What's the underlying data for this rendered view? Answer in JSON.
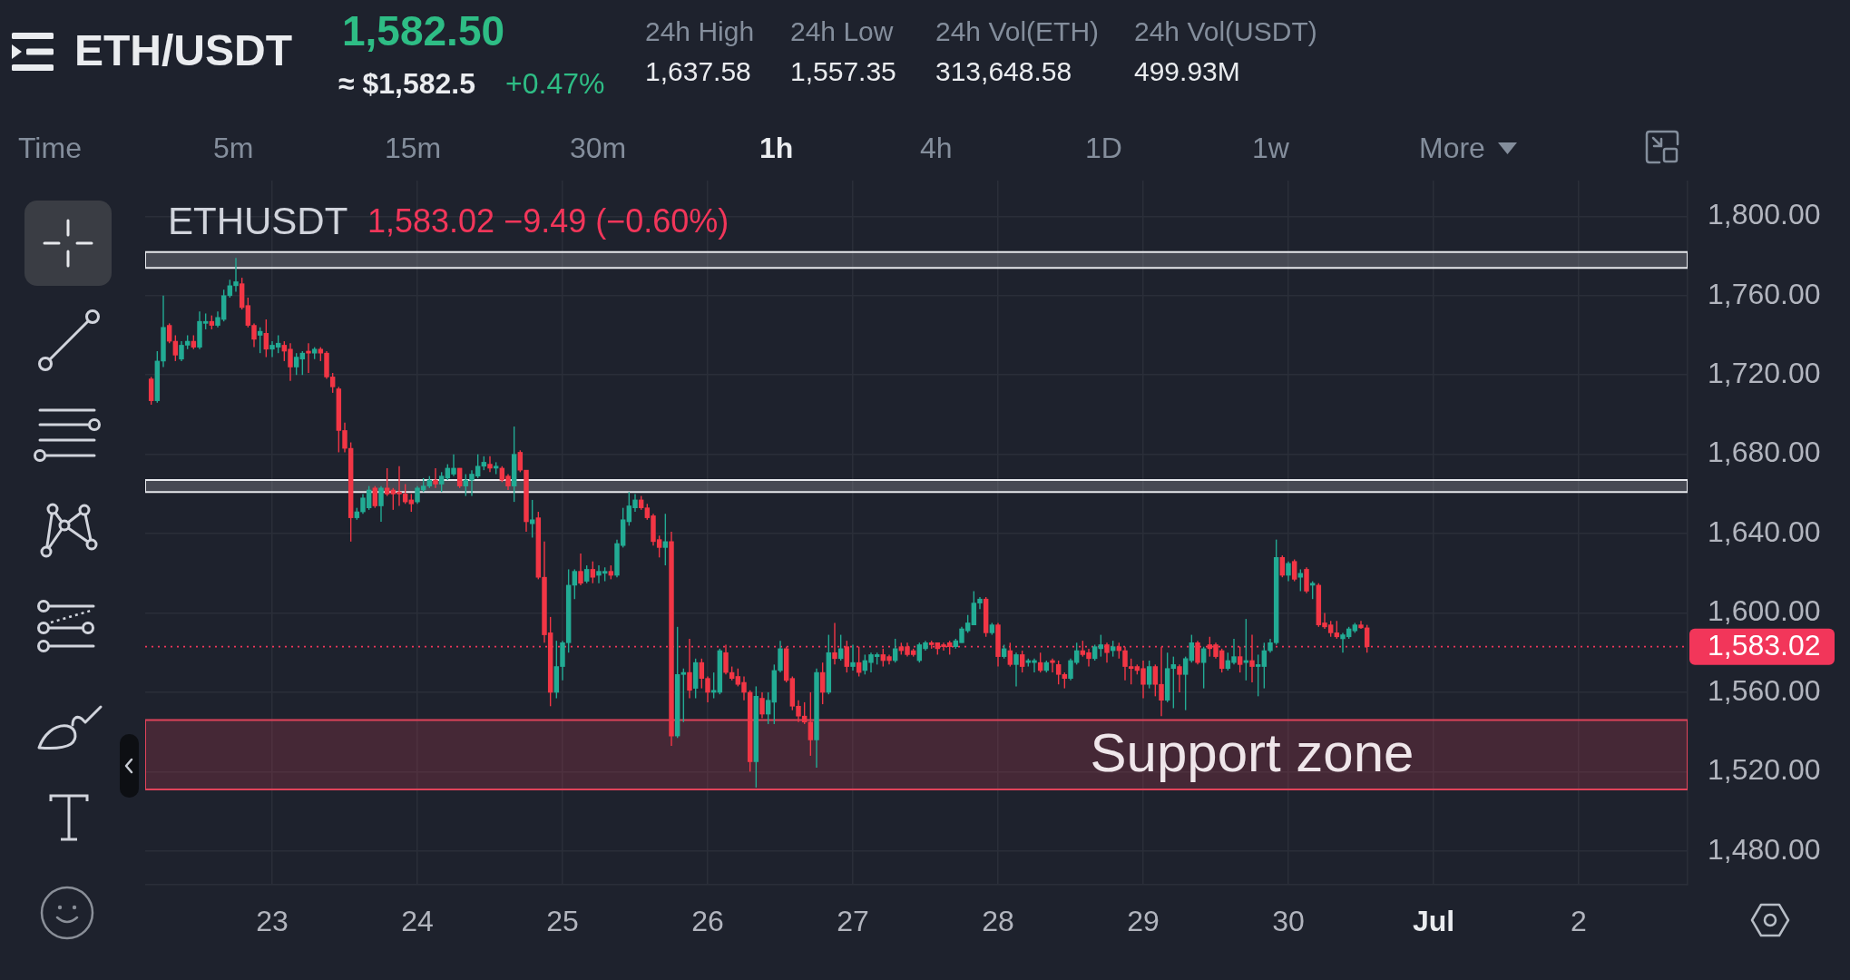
{
  "chart_data": {
    "type": "candlestick",
    "title": "ETH/USDT",
    "subtitle": "ETHUSDT",
    "annotations": [
      "1,582.50",
      "≈ $1,582.5",
      "+0.47%",
      "24h High",
      "1,637.58",
      "24h Low",
      "1,557.35",
      "24h Vol(ETH)",
      "313,648.58",
      "24h Vol(USDT)",
      "499.93M",
      "Time",
      "5m",
      "15m",
      "30m",
      "1h",
      "4h",
      "1D",
      "1w",
      "More",
      "1,583.02 −9.49 (−0.60%)"
    ],
    "x": [
      "--06-22T04:00",
      "--06-22T05:00",
      "--06-22T06:00",
      "--06-22T07:00",
      "--06-22T08:00",
      "--06-22T09:00",
      "--06-22T10:00",
      "--06-22T11:00",
      "--06-22T12:00",
      "--06-22T13:00",
      "--06-22T14:00",
      "--06-22T15:00",
      "--06-22T16:00",
      "--06-22T17:00",
      "--06-22T18:00",
      "--06-22T19:00",
      "--06-22T20:00",
      "--06-22T21:00",
      "--06-22T22:00",
      "--06-22T23:00",
      "--06-23T00:00",
      "--06-23T01:00",
      "--06-23T02:00",
      "--06-23T03:00",
      "--06-23T04:00",
      "--06-23T05:00",
      "--06-23T06:00",
      "--06-23T07:00",
      "--06-23T08:00",
      "--06-23T09:00",
      "--06-23T10:00",
      "--06-23T11:00",
      "--06-23T12:00",
      "--06-23T13:00",
      "--06-23T14:00",
      "--06-23T15:00",
      "--06-23T16:00",
      "--06-23T17:00",
      "--06-23T18:00",
      "--06-23T19:00",
      "--06-23T20:00",
      "--06-23T21:00",
      "--06-23T22:00",
      "--06-23T23:00",
      "--06-24T00:00",
      "--06-24T01:00",
      "--06-24T02:00",
      "--06-24T03:00",
      "--06-24T04:00",
      "--06-24T05:00",
      "--06-24T06:00",
      "--06-24T07:00",
      "--06-24T08:00",
      "--06-24T09:00",
      "--06-24T10:00",
      "--06-24T11:00",
      "--06-24T12:00",
      "--06-24T13:00",
      "--06-24T14:00",
      "--06-24T15:00",
      "--06-24T16:00",
      "--06-24T17:00",
      "--06-24T18:00",
      "--06-24T19:00",
      "--06-24T20:00",
      "--06-24T21:00",
      "--06-24T22:00",
      "--06-24T23:00",
      "--06-25T00:00",
      "--06-25T01:00",
      "--06-25T02:00",
      "--06-25T03:00",
      "--06-25T04:00",
      "--06-25T05:00",
      "--06-25T06:00",
      "--06-25T07:00",
      "--06-25T08:00",
      "--06-25T09:00",
      "--06-25T10:00",
      "--06-25T11:00",
      "--06-25T12:00",
      "--06-25T13:00",
      "--06-25T14:00",
      "--06-25T15:00",
      "--06-25T16:00",
      "--06-25T17:00",
      "--06-25T18:00",
      "--06-25T19:00",
      "--06-25T20:00",
      "--06-25T21:00",
      "--06-25T22:00",
      "--06-25T23:00",
      "--06-26T00:00",
      "--06-26T01:00",
      "--06-26T02:00",
      "--06-26T03:00",
      "--06-26T04:00",
      "--06-26T05:00",
      "--06-26T06:00",
      "--06-26T07:00",
      "--06-26T08:00",
      "--06-26T09:00",
      "--06-26T10:00",
      "--06-26T11:00",
      "--06-26T12:00",
      "--06-26T13:00",
      "--06-26T14:00",
      "--06-26T15:00",
      "--06-26T16:00",
      "--06-26T17:00",
      "--06-26T18:00",
      "--06-26T19:00",
      "--06-26T20:00",
      "--06-26T21:00",
      "--06-26T22:00",
      "--06-26T23:00",
      "--06-27T00:00",
      "--06-27T01:00",
      "--06-27T02:00",
      "--06-27T03:00",
      "--06-27T04:00",
      "--06-27T05:00",
      "--06-27T06:00",
      "--06-27T07:00",
      "--06-27T08:00",
      "--06-27T09:00",
      "--06-27T10:00",
      "--06-27T11:00",
      "--06-27T12:00",
      "--06-27T13:00",
      "--06-27T14:00",
      "--06-27T15:00",
      "--06-27T16:00",
      "--06-27T17:00",
      "--06-27T18:00",
      "--06-27T19:00",
      "--06-27T20:00",
      "--06-27T21:00",
      "--06-27T22:00",
      "--06-27T23:00",
      "--06-28T00:00",
      "--06-28T01:00",
      "--06-28T02:00",
      "--06-28T03:00",
      "--06-28T04:00",
      "--06-28T05:00",
      "--06-28T06:00",
      "--06-28T07:00",
      "--06-28T08:00",
      "--06-28T09:00",
      "--06-28T10:00",
      "--06-28T11:00",
      "--06-28T12:00",
      "--06-28T13:00",
      "--06-28T14:00",
      "--06-28T15:00",
      "--06-28T16:00",
      "--06-28T17:00",
      "--06-28T18:00",
      "--06-28T19:00",
      "--06-28T20:00",
      "--06-28T21:00",
      "--06-28T22:00",
      "--06-28T23:00",
      "--06-29T00:00",
      "--06-29T01:00",
      "--06-29T02:00",
      "--06-29T03:00",
      "--06-29T04:00",
      "--06-29T05:00",
      "--06-29T06:00",
      "--06-29T07:00",
      "--06-29T08:00",
      "--06-29T09:00",
      "--06-29T10:00",
      "--06-29T11:00",
      "--06-29T12:00",
      "--06-29T13:00",
      "--06-29T14:00",
      "--06-29T15:00",
      "--06-29T16:00",
      "--06-29T17:00",
      "--06-29T18:00",
      "--06-29T19:00",
      "--06-29T20:00",
      "--06-29T21:00",
      "--06-29T22:00",
      "--06-29T23:00",
      "--06-30T00:00",
      "--06-30T01:00",
      "--06-30T02:00",
      "--06-30T03:00",
      "--06-30T04:00",
      "--06-30T05:00",
      "--06-30T06:00",
      "--06-30T07:00",
      "--06-30T08:00",
      "--06-30T09:00",
      "--06-30T10:00",
      "--06-30T11:00",
      "--06-30T12:00",
      "--06-30T13:00"
    ],
    "ohlc": [
      [
        1718,
        1719,
        1705,
        1707
      ],
      [
        1707,
        1732,
        1706,
        1727
      ],
      [
        1727,
        1760,
        1724,
        1744
      ],
      [
        1745,
        1746,
        1736,
        1737
      ],
      [
        1737,
        1740,
        1727,
        1730
      ],
      [
        1728,
        1737,
        1727,
        1735
      ],
      [
        1735,
        1740,
        1733,
        1737
      ],
      [
        1737,
        1740,
        1733,
        1734
      ],
      [
        1734,
        1752,
        1733,
        1747
      ],
      [
        1746,
        1751,
        1743,
        1747
      ],
      [
        1747,
        1750,
        1743,
        1745
      ],
      [
        1745,
        1752,
        1744,
        1749
      ],
      [
        1748,
        1763,
        1747,
        1760
      ],
      [
        1760,
        1768,
        1759,
        1765
      ],
      [
        1765,
        1779,
        1762,
        1767
      ],
      [
        1766,
        1769,
        1753,
        1754
      ],
      [
        1755,
        1759,
        1744,
        1745
      ],
      [
        1745,
        1746,
        1734,
        1738
      ],
      [
        1740,
        1744,
        1731,
        1742
      ],
      [
        1741,
        1748,
        1729,
        1733
      ],
      [
        1733,
        1737,
        1729,
        1735
      ],
      [
        1734,
        1740,
        1731,
        1736
      ],
      [
        1735,
        1737,
        1727,
        1732
      ],
      [
        1733,
        1736,
        1717,
        1724
      ],
      [
        1724,
        1731,
        1720,
        1729
      ],
      [
        1728,
        1732,
        1720,
        1731
      ],
      [
        1732,
        1736,
        1721,
        1731
      ],
      [
        1731,
        1734,
        1728,
        1733
      ],
      [
        1733,
        1734,
        1727,
        1731
      ],
      [
        1731,
        1732,
        1718,
        1719
      ],
      [
        1719,
        1721,
        1711,
        1714
      ],
      [
        1713,
        1714,
        1681,
        1692
      ],
      [
        1692,
        1696,
        1681,
        1683
      ],
      [
        1683,
        1686,
        1636,
        1648
      ],
      [
        1648,
        1653,
        1647,
        1651
      ],
      [
        1651,
        1660,
        1650,
        1658
      ],
      [
        1653,
        1664,
        1652,
        1662
      ],
      [
        1663,
        1664,
        1653,
        1654
      ],
      [
        1654,
        1664,
        1646,
        1663
      ],
      [
        1663,
        1673,
        1659,
        1660
      ],
      [
        1662,
        1663,
        1652,
        1660
      ],
      [
        1661,
        1674,
        1654,
        1660
      ],
      [
        1660,
        1665,
        1655,
        1656
      ],
      [
        1657,
        1660,
        1651,
        1655
      ],
      [
        1656,
        1664,
        1655,
        1663
      ],
      [
        1662,
        1668,
        1661,
        1664
      ],
      [
        1664,
        1669,
        1663,
        1667
      ],
      [
        1667,
        1673,
        1663,
        1665
      ],
      [
        1665,
        1671,
        1661,
        1669
      ],
      [
        1668,
        1675,
        1667,
        1673
      ],
      [
        1670,
        1680,
        1669,
        1673
      ],
      [
        1673,
        1673,
        1663,
        1664
      ],
      [
        1664,
        1670,
        1659,
        1667
      ],
      [
        1667,
        1672,
        1659,
        1670
      ],
      [
        1669,
        1680,
        1668,
        1674
      ],
      [
        1674,
        1679,
        1672,
        1676
      ],
      [
        1675,
        1679,
        1671,
        1673
      ],
      [
        1673,
        1676,
        1670,
        1674
      ],
      [
        1673,
        1674,
        1666,
        1667
      ],
      [
        1669,
        1670,
        1662,
        1664
      ],
      [
        1664,
        1694,
        1656,
        1680
      ],
      [
        1681,
        1682,
        1671,
        1672
      ],
      [
        1672,
        1672,
        1641,
        1646
      ],
      [
        1645,
        1657,
        1638,
        1647
      ],
      [
        1648,
        1651,
        1617,
        1618
      ],
      [
        1618,
        1636,
        1585,
        1589
      ],
      [
        1590,
        1598,
        1553,
        1560
      ],
      [
        1560,
        1586,
        1557,
        1573
      ],
      [
        1573,
        1586,
        1566,
        1585
      ],
      [
        1585,
        1622,
        1580,
        1614
      ],
      [
        1614,
        1622,
        1607,
        1621
      ],
      [
        1621,
        1630,
        1614,
        1615
      ],
      [
        1616,
        1624,
        1615,
        1622
      ],
      [
        1622,
        1626,
        1615,
        1618
      ],
      [
        1619,
        1624,
        1615,
        1621
      ],
      [
        1620,
        1623,
        1616,
        1621
      ],
      [
        1621,
        1624,
        1617,
        1619
      ],
      [
        1619,
        1637,
        1618,
        1635
      ],
      [
        1634,
        1653,
        1633,
        1647
      ],
      [
        1646,
        1661,
        1644,
        1654
      ],
      [
        1653,
        1660,
        1651,
        1657
      ],
      [
        1657,
        1659,
        1652,
        1653
      ],
      [
        1653,
        1655,
        1647,
        1648
      ],
      [
        1649,
        1650,
        1634,
        1636
      ],
      [
        1637,
        1639,
        1628,
        1633
      ],
      [
        1633,
        1650,
        1624,
        1636
      ],
      [
        1636,
        1641,
        1533,
        1538
      ],
      [
        1538,
        1593,
        1537,
        1569
      ],
      [
        1569,
        1572,
        1545,
        1570
      ],
      [
        1570,
        1587,
        1557,
        1561
      ],
      [
        1562,
        1577,
        1557,
        1575
      ],
      [
        1575,
        1577,
        1562,
        1567
      ],
      [
        1567,
        1568,
        1555,
        1560
      ],
      [
        1560,
        1570,
        1557,
        1561
      ],
      [
        1560,
        1582,
        1559,
        1581
      ],
      [
        1580,
        1584,
        1569,
        1570
      ],
      [
        1570,
        1573,
        1566,
        1567
      ],
      [
        1568,
        1572,
        1563,
        1564
      ],
      [
        1565,
        1568,
        1556,
        1560
      ],
      [
        1560,
        1561,
        1520,
        1525
      ],
      [
        1525,
        1563,
        1512,
        1558
      ],
      [
        1557,
        1560,
        1547,
        1549
      ],
      [
        1549,
        1560,
        1544,
        1556
      ],
      [
        1555,
        1574,
        1544,
        1571
      ],
      [
        1571,
        1586,
        1570,
        1582
      ],
      [
        1582,
        1583,
        1565,
        1566
      ],
      [
        1567,
        1568,
        1551,
        1553
      ],
      [
        1553,
        1556,
        1545,
        1548
      ],
      [
        1548,
        1555,
        1544,
        1545
      ],
      [
        1545,
        1560,
        1528,
        1536
      ],
      [
        1536,
        1572,
        1522,
        1570
      ],
      [
        1570,
        1575,
        1554,
        1560
      ],
      [
        1560,
        1589,
        1559,
        1580
      ],
      [
        1580,
        1595,
        1574,
        1577
      ],
      [
        1577,
        1589,
        1576,
        1582
      ],
      [
        1583,
        1586,
        1570,
        1573
      ],
      [
        1573,
        1584,
        1571,
        1575
      ],
      [
        1575,
        1583,
        1568,
        1570
      ],
      [
        1571,
        1579,
        1569,
        1576
      ],
      [
        1575,
        1580,
        1570,
        1579
      ],
      [
        1578,
        1580,
        1574,
        1579
      ],
      [
        1579,
        1582,
        1573,
        1576
      ],
      [
        1578,
        1579,
        1574,
        1576
      ],
      [
        1576,
        1587,
        1575,
        1582
      ],
      [
        1583,
        1585,
        1579,
        1581
      ],
      [
        1583,
        1585,
        1578,
        1579
      ],
      [
        1581,
        1582,
        1578,
        1579
      ],
      [
        1576,
        1585,
        1575,
        1584
      ],
      [
        1582,
        1586,
        1581,
        1585
      ],
      [
        1585,
        1586,
        1582,
        1584
      ],
      [
        1585,
        1585,
        1579,
        1582
      ],
      [
        1584,
        1585,
        1581,
        1583
      ],
      [
        1585,
        1586,
        1579,
        1583
      ],
      [
        1583,
        1587,
        1582,
        1586
      ],
      [
        1585,
        1593,
        1585,
        1592
      ],
      [
        1591,
        1599,
        1590,
        1595
      ],
      [
        1594,
        1611,
        1594,
        1605
      ],
      [
        1605,
        1608,
        1602,
        1607
      ],
      [
        1607,
        1608,
        1588,
        1590
      ],
      [
        1590,
        1595,
        1589,
        1594
      ],
      [
        1594,
        1595,
        1573,
        1578
      ],
      [
        1578,
        1584,
        1577,
        1582
      ],
      [
        1581,
        1585,
        1573,
        1574
      ],
      [
        1574,
        1580,
        1563,
        1579
      ],
      [
        1579,
        1581,
        1570,
        1573
      ],
      [
        1575,
        1577,
        1573,
        1576
      ],
      [
        1575,
        1577,
        1570,
        1576
      ],
      [
        1575,
        1580,
        1570,
        1571
      ],
      [
        1571,
        1576,
        1570,
        1575
      ],
      [
        1576,
        1577,
        1570,
        1575
      ],
      [
        1574,
        1576,
        1564,
        1569
      ],
      [
        1569,
        1570,
        1562,
        1567
      ],
      [
        1567,
        1577,
        1566,
        1576
      ],
      [
        1575,
        1585,
        1574,
        1581
      ],
      [
        1581,
        1586,
        1578,
        1579
      ],
      [
        1580,
        1582,
        1573,
        1577
      ],
      [
        1577,
        1584,
        1576,
        1583
      ],
      [
        1582,
        1589,
        1578,
        1584
      ],
      [
        1584,
        1585,
        1575,
        1580
      ],
      [
        1581,
        1586,
        1578,
        1583
      ],
      [
        1583,
        1585,
        1577,
        1581
      ],
      [
        1581,
        1583,
        1566,
        1573
      ],
      [
        1573,
        1577,
        1564,
        1572
      ],
      [
        1573,
        1574,
        1569,
        1571
      ],
      [
        1572,
        1576,
        1557,
        1564
      ],
      [
        1564,
        1576,
        1562,
        1573
      ],
      [
        1573,
        1574,
        1558,
        1564
      ],
      [
        1564,
        1583,
        1548,
        1556
      ],
      [
        1556,
        1580,
        1555,
        1572
      ],
      [
        1572,
        1578,
        1552,
        1574
      ],
      [
        1573,
        1574,
        1560,
        1569
      ],
      [
        1569,
        1578,
        1551,
        1577
      ],
      [
        1576,
        1589,
        1575,
        1585
      ],
      [
        1585,
        1586,
        1574,
        1575
      ],
      [
        1575,
        1583,
        1562,
        1582
      ],
      [
        1584,
        1588,
        1578,
        1582
      ],
      [
        1584,
        1585,
        1577,
        1578
      ],
      [
        1581,
        1582,
        1570,
        1572
      ],
      [
        1572,
        1580,
        1571,
        1576
      ],
      [
        1575,
        1587,
        1574,
        1578
      ],
      [
        1578,
        1583,
        1570,
        1574
      ],
      [
        1575,
        1597,
        1566,
        1576
      ],
      [
        1576,
        1589,
        1565,
        1573
      ],
      [
        1573,
        1579,
        1558,
        1574
      ],
      [
        1573,
        1585,
        1562,
        1581
      ],
      [
        1581,
        1587,
        1580,
        1585
      ],
      [
        1585,
        1637,
        1584,
        1628
      ],
      [
        1628,
        1629,
        1618,
        1619
      ],
      [
        1619,
        1626,
        1616,
        1625
      ],
      [
        1626,
        1627,
        1616,
        1617
      ],
      [
        1618,
        1622,
        1611,
        1620
      ],
      [
        1622,
        1623,
        1610,
        1611
      ],
      [
        1614,
        1616,
        1607,
        1615
      ],
      [
        1614,
        1615,
        1593,
        1594
      ],
      [
        1595,
        1600,
        1592,
        1593
      ],
      [
        1594,
        1596,
        1588,
        1590
      ],
      [
        1590,
        1596,
        1587,
        1588
      ],
      [
        1587,
        1590,
        1580,
        1589
      ],
      [
        1588,
        1593,
        1587,
        1592
      ],
      [
        1591,
        1595,
        1590,
        1594
      ],
      [
        1594,
        1596,
        1592,
        1592.51
      ],
      [
        1592.51,
        1594,
        1580,
        1583.02
      ]
    ],
    "colors": [
      "#f23645",
      "#22ab94",
      "#22ab94",
      "#f23645",
      "#f23645",
      "#22ab94",
      "#22ab94",
      "#f23645",
      "#22ab94",
      "#22ab94",
      "#f23645",
      "#22ab94",
      "#22ab94",
      "#22ab94",
      "#22ab94",
      "#f23645",
      "#f23645",
      "#f23645",
      "#22ab94",
      "#f23645",
      "#22ab94",
      "#22ab94",
      "#f23645",
      "#f23645",
      "#22ab94",
      "#22ab94",
      "#f23645",
      "#22ab94",
      "#f23645",
      "#f23645",
      "#f23645",
      "#f23645",
      "#f23645",
      "#f23645",
      "#22ab94",
      "#22ab94",
      "#22ab94",
      "#f23645",
      "#22ab94",
      "#f23645",
      "#f23645",
      "#f23645",
      "#f23645",
      "#f23645",
      "#22ab94",
      "#22ab94",
      "#22ab94",
      "#f23645",
      "#22ab94",
      "#22ab94",
      "#22ab94",
      "#f23645",
      "#22ab94",
      "#22ab94",
      "#22ab94",
      "#22ab94",
      "#f23645",
      "#22ab94",
      "#f23645",
      "#f23645",
      "#22ab94",
      "#f23645",
      "#f23645",
      "#22ab94",
      "#f23645",
      "#f23645",
      "#f23645",
      "#22ab94",
      "#22ab94",
      "#22ab94",
      "#22ab94",
      "#f23645",
      "#22ab94",
      "#f23645",
      "#22ab94",
      "#22ab94",
      "#f23645",
      "#22ab94",
      "#22ab94",
      "#22ab94",
      "#22ab94",
      "#f23645",
      "#f23645",
      "#f23645",
      "#f23645",
      "#22ab94",
      "#f23645",
      "#22ab94",
      "#22ab94",
      "#f23645",
      "#22ab94",
      "#f23645",
      "#f23645",
      "#22ab94",
      "#22ab94",
      "#f23645",
      "#f23645",
      "#f23645",
      "#f23645",
      "#f23645",
      "#22ab94",
      "#f23645",
      "#22ab94",
      "#22ab94",
      "#22ab94",
      "#f23645",
      "#f23645",
      "#f23645",
      "#f23645",
      "#f23645",
      "#22ab94",
      "#f23645",
      "#22ab94",
      "#f23645",
      "#22ab94",
      "#f23645",
      "#22ab94",
      "#f23645",
      "#22ab94",
      "#22ab94",
      "#22ab94",
      "#f23645",
      "#f23645",
      "#22ab94",
      "#f23645",
      "#f23645",
      "#f23645",
      "#22ab94",
      "#22ab94",
      "#f23645",
      "#f23645",
      "#f23645",
      "#f23645",
      "#22ab94",
      "#22ab94",
      "#22ab94",
      "#22ab94",
      "#22ab94",
      "#f23645",
      "#22ab94",
      "#f23645",
      "#22ab94",
      "#f23645",
      "#22ab94",
      "#f23645",
      "#22ab94",
      "#22ab94",
      "#f23645",
      "#22ab94",
      "#f23645",
      "#f23645",
      "#f23645",
      "#22ab94",
      "#22ab94",
      "#f23645",
      "#f23645",
      "#22ab94",
      "#22ab94",
      "#f23645",
      "#22ab94",
      "#f23645",
      "#f23645",
      "#f23645",
      "#f23645",
      "#f23645",
      "#22ab94",
      "#f23645",
      "#f23645",
      "#22ab94",
      "#22ab94",
      "#f23645",
      "#22ab94",
      "#22ab94",
      "#f23645",
      "#22ab94",
      "#f23645",
      "#f23645",
      "#f23645",
      "#22ab94",
      "#22ab94",
      "#f23645",
      "#22ab94",
      "#f23645",
      "#22ab94",
      "#22ab94",
      "#22ab94",
      "#22ab94",
      "#f23645",
      "#22ab94",
      "#f23645",
      "#22ab94",
      "#f23645",
      "#22ab94",
      "#f23645",
      "#f23645",
      "#f23645",
      "#f23645",
      "#22ab94",
      "#22ab94",
      "#22ab94",
      "#f23645",
      "#f23645"
    ],
    "xlim": [
      "--06-22T03:00",
      "--07-02T18:00"
    ],
    "xticks": [
      {
        "value": "--06-23",
        "label": "23"
      },
      {
        "value": "--06-24",
        "label": "24"
      },
      {
        "value": "--06-25",
        "label": "25"
      },
      {
        "value": "--06-26",
        "label": "26"
      },
      {
        "value": "--06-27",
        "label": "27"
      },
      {
        "value": "--06-28",
        "label": "28"
      },
      {
        "value": "--06-29",
        "label": "29"
      },
      {
        "value": "--06-30",
        "label": "30"
      },
      {
        "value": "--07-01",
        "label": "Jul"
      },
      {
        "value": "--07-02",
        "label": "2"
      }
    ],
    "ylim": [
      1463,
      1818
    ],
    "yticks": [
      {
        "value": 1480,
        "label": "1,480.00"
      },
      {
        "value": 1520,
        "label": "1,520.00"
      },
      {
        "value": 1560,
        "label": "1,560.00"
      },
      {
        "value": 1600,
        "label": "1,600.00"
      },
      {
        "value": 1640,
        "label": "1,640.00"
      },
      {
        "value": 1680,
        "label": "1,680.00"
      },
      {
        "value": 1720,
        "label": "1,720.00"
      },
      {
        "value": 1760,
        "label": "1,760.00"
      },
      {
        "value": 1800,
        "label": "1,800.00"
      }
    ],
    "grid": true,
    "ref_lines": [
      {
        "axis": "y",
        "value": 1583.02,
        "label": "1,583.02",
        "color": "#f2365a",
        "line_style": "dotted"
      }
    ],
    "bands": [
      {
        "axis": "y",
        "from": 1774,
        "to": 1782,
        "color": "#e6e8ec"
      },
      {
        "axis": "y",
        "from": 1661,
        "to": 1667,
        "color": "#e6e8ec"
      },
      {
        "axis": "y",
        "from": 1511,
        "to": 1546,
        "label": "Support zone",
        "color": "#e0435a"
      }
    ]
  }
}
